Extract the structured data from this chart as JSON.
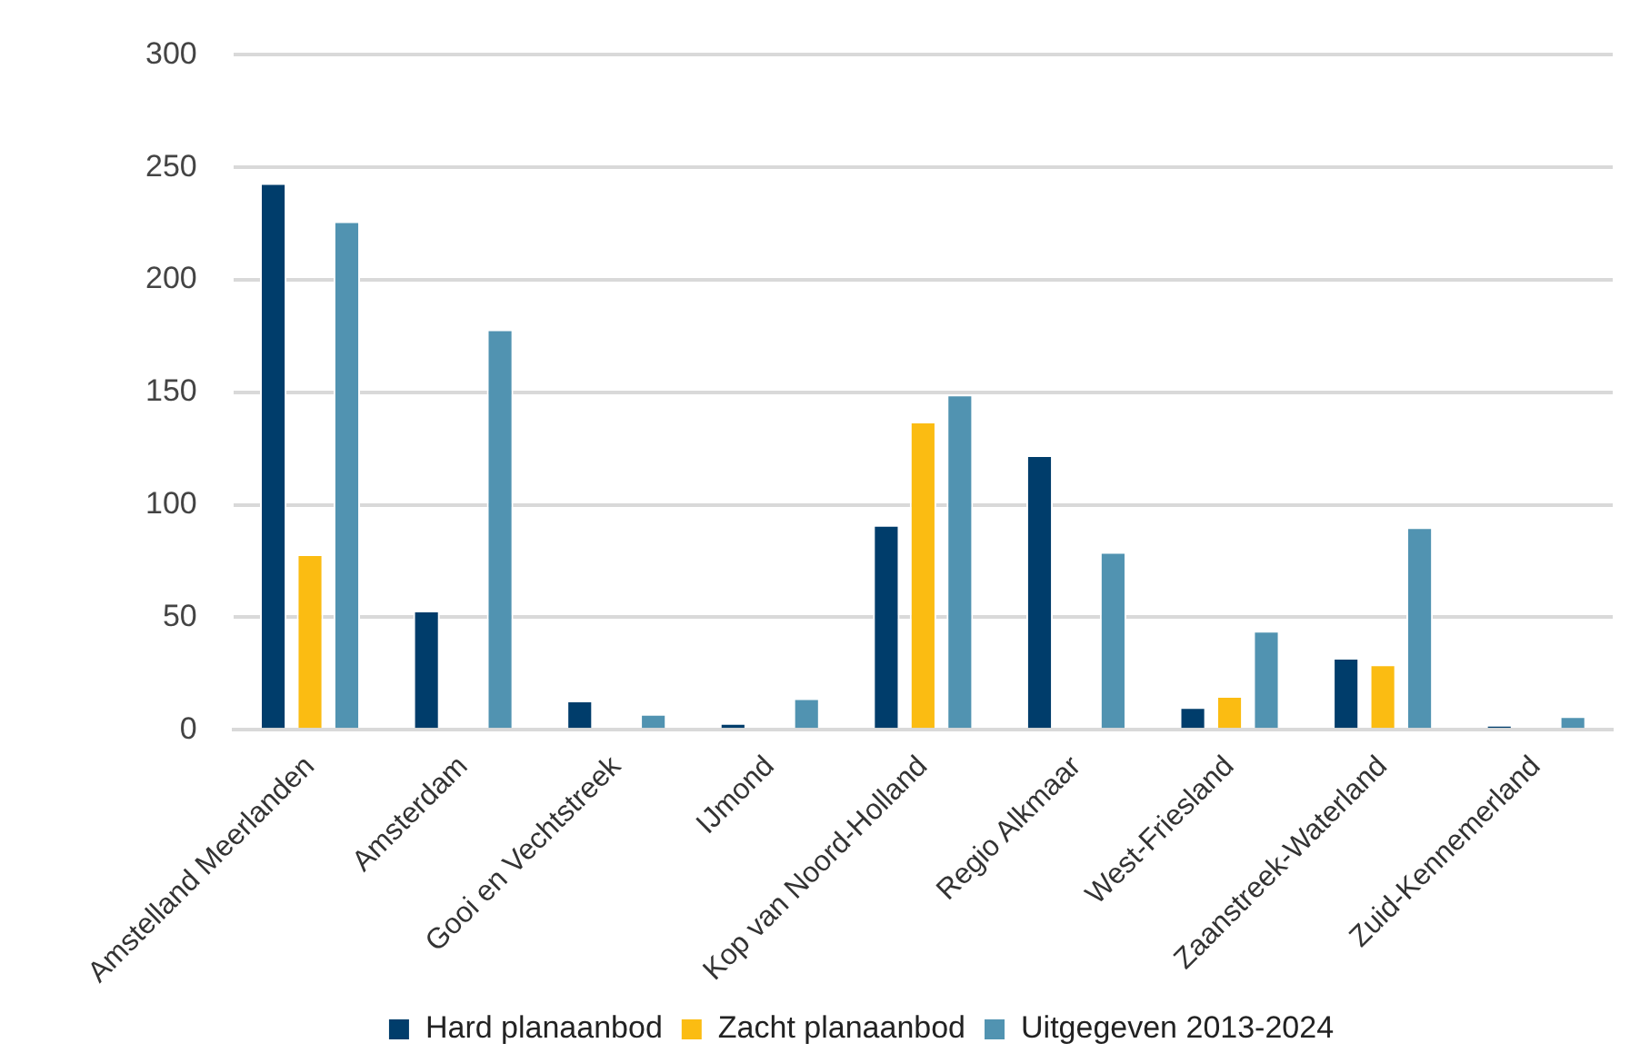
{
  "chart_data": {
    "type": "bar",
    "categories": [
      "Amstelland Meerlanden",
      "Amsterdam",
      "Gooi en Vechtstreek",
      "IJmond",
      "Kop van Noord-Holland",
      "Regio Alkmaar",
      "West-Friesland",
      "Zaanstreek-Waterland",
      "Zuid-Kennemerland"
    ],
    "series": [
      {
        "name": "Hard planaanbod",
        "color": "#003d6b",
        "values": [
          243,
          53,
          13,
          3,
          91,
          122,
          10,
          32,
          2
        ]
      },
      {
        "name": "Zacht planaanbod",
        "color": "#fbbc12",
        "values": [
          78,
          null,
          null,
          null,
          137,
          null,
          15,
          29,
          0
        ]
      },
      {
        "name": "Uitgegeven 2013-2024",
        "color": "#5193b1",
        "values": [
          226,
          178,
          7,
          14,
          149,
          79,
          44,
          90,
          6
        ]
      }
    ],
    "ylim": [
      0,
      300
    ],
    "yticks": [
      0,
      50,
      100,
      150,
      200,
      250,
      300
    ],
    "grid": "y",
    "legend": "bottom"
  }
}
